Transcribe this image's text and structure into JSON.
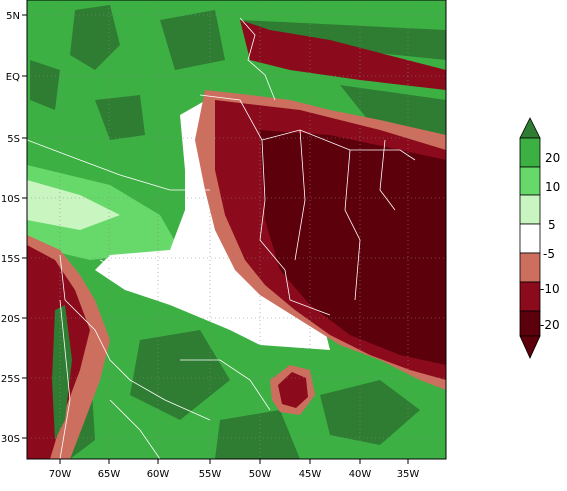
{
  "map": {
    "x_ticks": [
      "70W",
      "65W",
      "60W",
      "55W",
      "50W",
      "45W",
      "40W",
      "35W"
    ],
    "y_ticks": [
      "5N",
      "EQ",
      "5S",
      "10S",
      "15S",
      "20S",
      "25S",
      "30S"
    ]
  },
  "colorbar": {
    "labels": [
      "20",
      "10",
      "5",
      "-5",
      "-10",
      "-20"
    ],
    "colors": {
      "gt20": "#2e7d32",
      "10_20": "#3cb043",
      "5_10": "#66d96a",
      "neutral": "#ffffff",
      "n5_10": "#cd6f5f",
      "n10_20": "#8b0b1c",
      "lt_n20": "#5c000b",
      "light_green": "#c9f5c0"
    }
  }
}
